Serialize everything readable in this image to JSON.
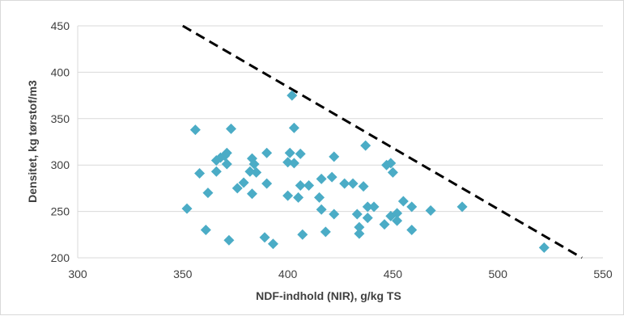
{
  "chart_data": {
    "type": "scatter",
    "xlabel": "NDF-indhold (NIR), g/kg TS",
    "ylabel": "Densitet, kg tørstof/m3",
    "xlim": [
      300,
      550
    ],
    "ylim": [
      200,
      450
    ],
    "x_ticks": [
      300,
      350,
      400,
      450,
      500,
      550
    ],
    "y_ticks": [
      200,
      250,
      300,
      350,
      400,
      450
    ],
    "grid": "horizontal",
    "marker": "diamond",
    "marker_color": "#4bacc6",
    "points": [
      {
        "x": 352,
        "y": 253
      },
      {
        "x": 356,
        "y": 338
      },
      {
        "x": 358,
        "y": 291
      },
      {
        "x": 361,
        "y": 230
      },
      {
        "x": 362,
        "y": 270
      },
      {
        "x": 366,
        "y": 293
      },
      {
        "x": 366,
        "y": 305
      },
      {
        "x": 368,
        "y": 308
      },
      {
        "x": 370,
        "y": 310
      },
      {
        "x": 371,
        "y": 313
      },
      {
        "x": 371,
        "y": 301
      },
      {
        "x": 372,
        "y": 219
      },
      {
        "x": 373,
        "y": 339
      },
      {
        "x": 376,
        "y": 275
      },
      {
        "x": 379,
        "y": 281
      },
      {
        "x": 382,
        "y": 293
      },
      {
        "x": 383,
        "y": 307
      },
      {
        "x": 383,
        "y": 269
      },
      {
        "x": 384,
        "y": 301
      },
      {
        "x": 385,
        "y": 292
      },
      {
        "x": 389,
        "y": 222
      },
      {
        "x": 390,
        "y": 313
      },
      {
        "x": 390,
        "y": 280
      },
      {
        "x": 393,
        "y": 215
      },
      {
        "x": 400,
        "y": 267
      },
      {
        "x": 400,
        "y": 303
      },
      {
        "x": 401,
        "y": 313
      },
      {
        "x": 402,
        "y": 375
      },
      {
        "x": 403,
        "y": 340
      },
      {
        "x": 403,
        "y": 302
      },
      {
        "x": 405,
        "y": 265
      },
      {
        "x": 406,
        "y": 278
      },
      {
        "x": 406,
        "y": 312
      },
      {
        "x": 407,
        "y": 225
      },
      {
        "x": 410,
        "y": 278
      },
      {
        "x": 415,
        "y": 265
      },
      {
        "x": 416,
        "y": 285
      },
      {
        "x": 416,
        "y": 252
      },
      {
        "x": 418,
        "y": 228
      },
      {
        "x": 421,
        "y": 287
      },
      {
        "x": 422,
        "y": 309
      },
      {
        "x": 422,
        "y": 247
      },
      {
        "x": 427,
        "y": 280
      },
      {
        "x": 431,
        "y": 280
      },
      {
        "x": 433,
        "y": 247
      },
      {
        "x": 434,
        "y": 226
      },
      {
        "x": 434,
        "y": 233
      },
      {
        "x": 436,
        "y": 277
      },
      {
        "x": 437,
        "y": 321
      },
      {
        "x": 438,
        "y": 243
      },
      {
        "x": 438,
        "y": 255
      },
      {
        "x": 441,
        "y": 255
      },
      {
        "x": 446,
        "y": 236
      },
      {
        "x": 447,
        "y": 300
      },
      {
        "x": 449,
        "y": 302
      },
      {
        "x": 449,
        "y": 245
      },
      {
        "x": 450,
        "y": 292
      },
      {
        "x": 452,
        "y": 248
      },
      {
        "x": 452,
        "y": 240
      },
      {
        "x": 455,
        "y": 261
      },
      {
        "x": 459,
        "y": 255
      },
      {
        "x": 459,
        "y": 230
      },
      {
        "x": 468,
        "y": 251
      },
      {
        "x": 483,
        "y": 255
      },
      {
        "x": 522,
        "y": 211
      }
    ],
    "reference_line": {
      "style": "dashed",
      "color": "#000000",
      "x": [
        350,
        540
      ],
      "y": [
        450,
        200
      ]
    }
  }
}
